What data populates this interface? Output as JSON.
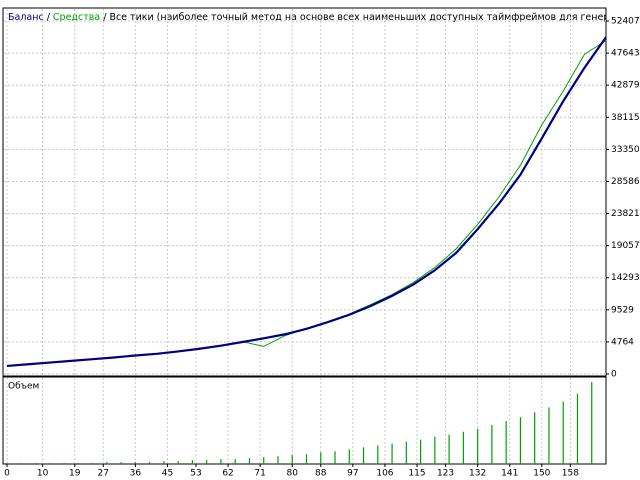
{
  "chart_data": [
    {
      "type": "line",
      "title": "Все тики (наиболее точный метод на основе всех наименьших доступных таймфреймов для генерации каждого тика",
      "x": [
        0,
        6,
        12,
        18,
        24,
        30,
        36,
        42,
        48,
        54,
        60,
        66,
        72,
        78,
        84,
        90,
        96,
        102,
        108,
        114,
        120,
        126,
        132,
        138,
        144,
        150,
        156,
        162,
        168
      ],
      "series": [
        {
          "name": "Баланс",
          "color": "#000080",
          "values": [
            1200,
            1450,
            1700,
            1950,
            2200,
            2450,
            2750,
            3000,
            3350,
            3750,
            4200,
            4750,
            5300,
            5900,
            6700,
            7700,
            8800,
            10100,
            11600,
            13300,
            15400,
            18000,
            21500,
            25300,
            29600,
            35000,
            40500,
            45500,
            50000
          ]
        },
        {
          "name": "Средства",
          "color": "#00a000",
          "values": [
            1200,
            1450,
            1700,
            1950,
            2200,
            2450,
            2750,
            3000,
            3350,
            3750,
            4250,
            4800,
            4100,
            5700,
            6800,
            7800,
            8900,
            10300,
            11800,
            13600,
            15800,
            18600,
            22200,
            26300,
            31000,
            37000,
            42000,
            47500,
            49500
          ]
        }
      ],
      "xlim": [
        0,
        168
      ],
      "ylim": [
        0,
        54345
      ],
      "yticks": [
        0,
        4764,
        9529,
        14293,
        19057,
        23821,
        28586,
        33350,
        38115,
        42879,
        47643,
        52407
      ],
      "grid": true
    },
    {
      "type": "bar",
      "title": "Объем",
      "color": "#00a000",
      "x": [
        0,
        4,
        8,
        12,
        16,
        20,
        24,
        28,
        32,
        36,
        40,
        44,
        48,
        52,
        56,
        60,
        64,
        68,
        72,
        76,
        80,
        84,
        88,
        92,
        96,
        100,
        104,
        108,
        112,
        116,
        120,
        124,
        128,
        132,
        136,
        140,
        144,
        148,
        152,
        156,
        160,
        164
      ],
      "values": [
        1,
        1,
        1,
        1,
        1,
        1,
        1,
        2,
        2,
        2,
        2,
        3,
        3,
        4,
        4,
        5,
        5,
        6,
        7,
        8,
        9,
        10,
        12,
        13,
        15,
        17,
        19,
        21,
        23,
        25,
        28,
        30,
        33,
        36,
        40,
        44,
        48,
        53,
        58,
        64,
        72,
        84
      ],
      "xlim": [
        0,
        168
      ],
      "xticks": [
        0,
        10,
        19,
        27,
        36,
        45,
        53,
        62,
        71,
        80,
        88,
        97,
        106,
        115,
        123,
        132,
        141,
        150,
        158
      ],
      "grid": true
    }
  ]
}
